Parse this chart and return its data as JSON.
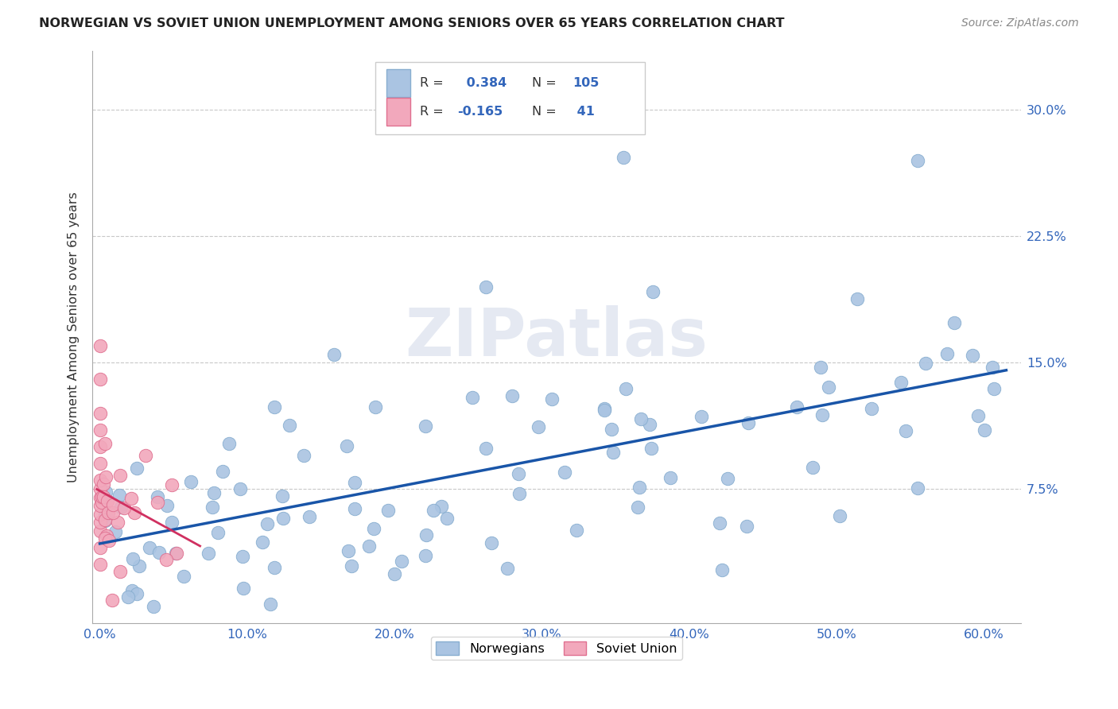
{
  "title": "NORWEGIAN VS SOVIET UNION UNEMPLOYMENT AMONG SENIORS OVER 65 YEARS CORRELATION CHART",
  "source": "Source: ZipAtlas.com",
  "xlabel_ticks": [
    "0.0%",
    "10.0%",
    "20.0%",
    "30.0%",
    "40.0%",
    "50.0%",
    "60.0%"
  ],
  "xlabel_vals": [
    0.0,
    0.1,
    0.2,
    0.3,
    0.4,
    0.5,
    0.6
  ],
  "ylabel": "Unemployment Among Seniors over 65 years",
  "ylabel_ticks": [
    "7.5%",
    "15.0%",
    "22.5%",
    "30.0%"
  ],
  "ylabel_vals": [
    0.075,
    0.15,
    0.225,
    0.3
  ],
  "xlim": [
    -0.005,
    0.625
  ],
  "ylim": [
    -0.005,
    0.335
  ],
  "norwegian_color": "#aac4e2",
  "soviet_color": "#f2a8bc",
  "norwegian_edge": "#88aed0",
  "soviet_edge": "#e07090",
  "trend_norwegian_color": "#1955a8",
  "trend_soviet_color": "#d03060",
  "legend_norwegian_label": "Norwegians",
  "legend_soviet_label": "Soviet Union",
  "norwegian_R": 0.384,
  "norwegian_N": 105,
  "soviet_R": -0.165,
  "soviet_N": 41,
  "background_color": "#ffffff",
  "grid_color": "#c8c8c8",
  "watermark": "ZIPatlas",
  "tick_color": "#3366bb",
  "title_color": "#222222",
  "source_color": "#888888"
}
